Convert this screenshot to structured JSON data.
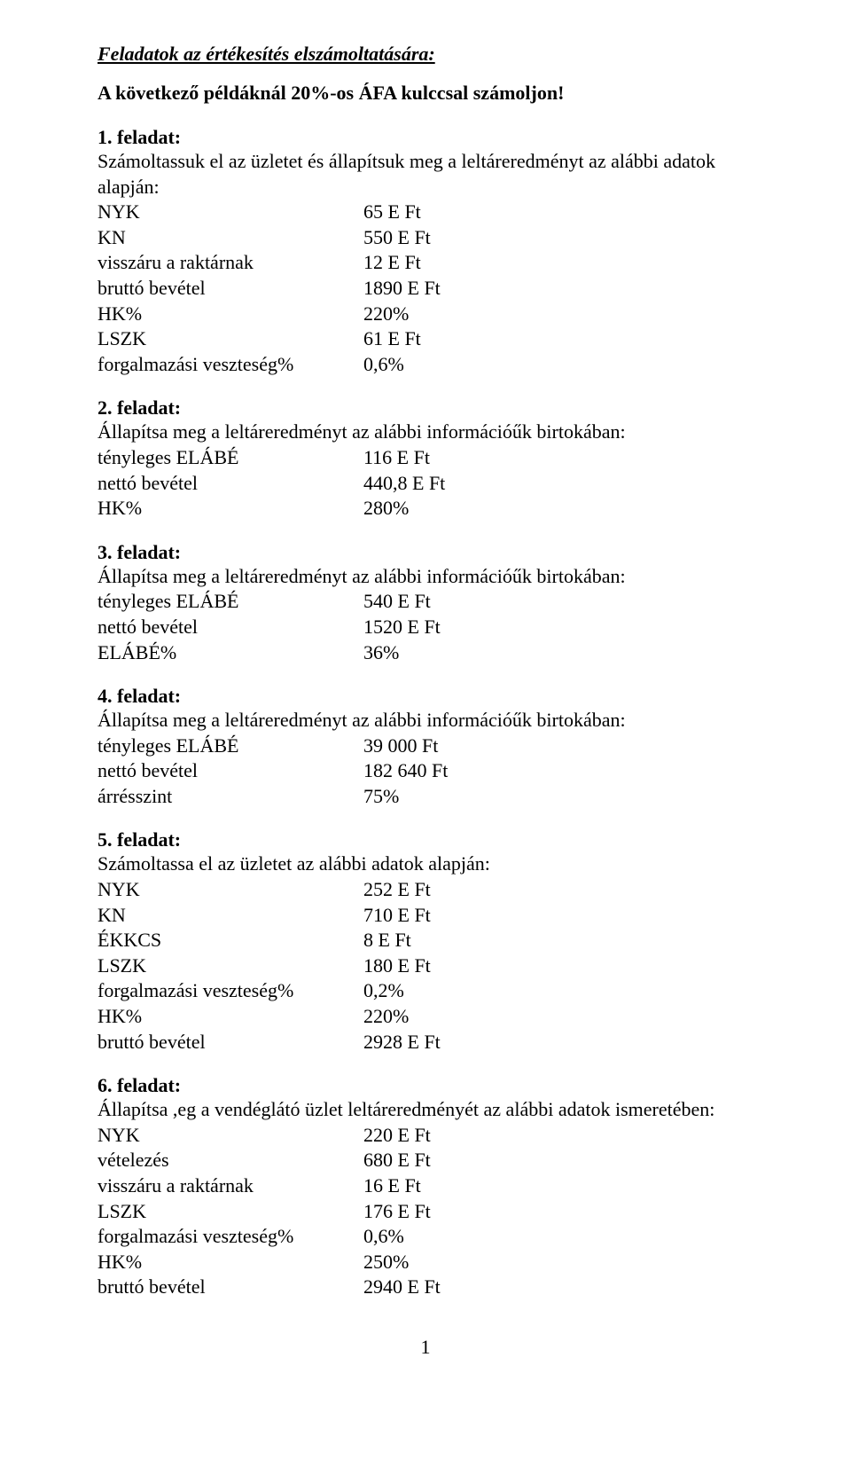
{
  "title": "Feladatok az értékesítés elszámoltatására:",
  "subtitle": "A következő példáknál 20%-os ÁFA kulccsal számoljon!",
  "pageNumber": "1",
  "tasks": [
    {
      "heading": "1. feladat:",
      "intro": "Számoltassuk el az üzletet és állapítsuk meg a leltáreredményt az alábbi adatok alapján:",
      "rows": [
        {
          "label": "NYK",
          "value": "65 E Ft"
        },
        {
          "label": "KN",
          "value": "550 E Ft"
        },
        {
          "label": "visszáru a raktárnak",
          "value": "12 E Ft"
        },
        {
          "label": "bruttó bevétel",
          "value": "1890 E Ft"
        },
        {
          "label": "HK%",
          "value": "220%"
        },
        {
          "label": "LSZK",
          "value": "61 E Ft"
        },
        {
          "label": "forgalmazási veszteség%",
          "value": "0,6%"
        }
      ]
    },
    {
      "heading": "2. feladat:",
      "intro": "Állapítsa meg a leltáreredményt az alábbi információűk birtokában:",
      "rows": [
        {
          "label": "tényleges ELÁBÉ",
          "value": "116 E Ft"
        },
        {
          "label": "nettó bevétel",
          "value": "440,8 E Ft"
        },
        {
          "label": "HK%",
          "value": "280%"
        }
      ]
    },
    {
      "heading": "3. feladat:",
      "intro": "Állapítsa meg a leltáreredményt az alábbi információűk birtokában:",
      "rows": [
        {
          "label": "tényleges ELÁBÉ",
          "value": "540 E Ft"
        },
        {
          "label": "nettó bevétel",
          "value": "1520 E Ft"
        },
        {
          "label": "ELÁBÉ%",
          "value": "36%"
        }
      ]
    },
    {
      "heading": "4. feladat:",
      "intro": "Állapítsa meg a leltáreredményt az alábbi információűk birtokában:",
      "rows": [
        {
          "label": "tényleges ELÁBÉ",
          "value": "39 000 Ft"
        },
        {
          "label": "nettó bevétel",
          "value": "182 640 Ft"
        },
        {
          "label": "árrésszint",
          "value": "75%"
        }
      ]
    },
    {
      "heading": "5. feladat:",
      "intro": "Számoltassa el az üzletet az alábbi adatok alapján:",
      "rows": [
        {
          "label": "NYK",
          "value": "252 E Ft"
        },
        {
          "label": "KN",
          "value": "710 E Ft"
        },
        {
          "label": "ÉKKCS",
          "value": "8 E Ft"
        },
        {
          "label": "LSZK",
          "value": "180 E Ft"
        },
        {
          "label": "forgalmazási veszteség%",
          "value": "0,2%"
        },
        {
          "label": "HK%",
          "value": "220%"
        },
        {
          "label": "bruttó bevétel",
          "value": "2928 E Ft"
        }
      ]
    },
    {
      "heading": "6. feladat:",
      "intro": "Állapítsa ,eg a vendéglátó üzlet leltáreredményét az alábbi adatok ismeretében:",
      "rows": [
        {
          "label": "NYK",
          "value": "220 E Ft"
        },
        {
          "label": "vételezés",
          "value": "680 E Ft"
        },
        {
          "label": "visszáru a raktárnak",
          "value": "16 E Ft"
        },
        {
          "label": "LSZK",
          "value": "176 E Ft"
        },
        {
          "label": "forgalmazási veszteség%",
          "value": "0,6%"
        },
        {
          "label": "HK%",
          "value": "250%"
        },
        {
          "label": "bruttó bevétel",
          "value": "2940 E Ft"
        }
      ]
    }
  ]
}
